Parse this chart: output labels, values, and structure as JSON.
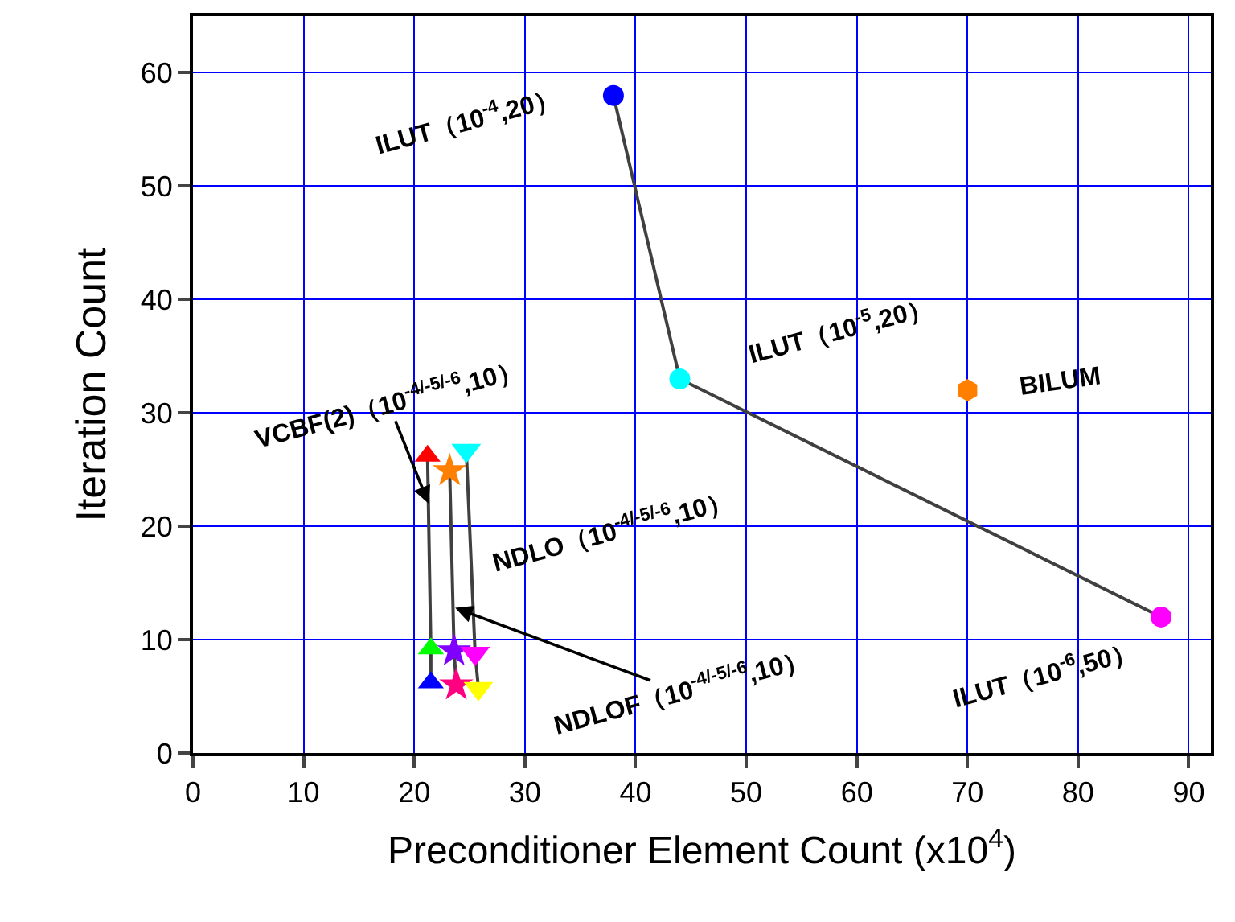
{
  "chart_data": {
    "type": "scatter",
    "xlabel": "Preconditioner Element Count (x10$^{4}$)",
    "ylabel": "Iteration Count",
    "xlim": [
      0,
      92
    ],
    "ylim": [
      0,
      65
    ],
    "xticks": [
      0,
      10,
      20,
      30,
      40,
      50,
      60,
      70,
      80,
      90
    ],
    "yticks": [
      0,
      10,
      20,
      30,
      40,
      50,
      60
    ],
    "grid": true,
    "line_style": "solid",
    "series": [
      {
        "type": "line",
        "marker": "circle",
        "color": "#404040",
        "colors": [
          "#0000ff",
          "#00ffff",
          "#ff00ff"
        ],
        "x": [
          38,
          44,
          87.5
        ],
        "values": [
          58,
          33,
          12
        ]
      },
      {
        "color": "#ff8000",
        "x": [
          70
        ],
        "values": [
          32
        ]
      },
      {
        "type": "line",
        "marker": "triangle",
        "color": "#404040",
        "colors": [
          "#ff0000",
          "#00ff00",
          "#0000ff"
        ],
        "x": [
          21.2,
          21.5,
          21.5
        ],
        "values": [
          26.2,
          9.2,
          6.2
        ]
      },
      {
        "type": "line",
        "marker": "star",
        "color": "#404040",
        "colors": [
          "#ff8000",
          "#8000ff",
          "#ff0080"
        ],
        "x": [
          23.2,
          23.6,
          23.8
        ],
        "values": [
          24.9,
          9,
          6
        ]
      },
      {
        "type": "line",
        "marker": "triangle-down",
        "color": "#404040",
        "colors": [
          "#00ffff",
          "#ff00ff",
          "#ffff00"
        ],
        "x": [
          24.7,
          25.5,
          25.8
        ],
        "values": [
          26.7,
          8.8,
          5.7
        ]
      }
    ],
    "annotations": [
      {
        "text": "ILUT（10$^{-4}$,20）",
        "x": 38,
        "y": 58
      },
      {
        "text": "ILUT（10$^{-5}$,20）",
        "x": 44,
        "y": 33
      },
      {
        "text": "BILUM",
        "x": 70,
        "y": 32
      },
      {
        "text": "ILUT（10$^{-6}$,50）",
        "x": 87.5,
        "y": 12
      },
      {
        "text": "VCBF(2)（10$^{-4/-5/-6}$,10）",
        "x": 21.3,
        "y": 22
      },
      {
        "text": "NDLO（10$^{-4/-5/-6}$,10）",
        "x": 24.7,
        "y": 26.7
      },
      {
        "text": "NDLOF（10$^{-4/-5/-6}$,10）",
        "x": 23.7,
        "y": 12.8
      }
    ]
  }
}
